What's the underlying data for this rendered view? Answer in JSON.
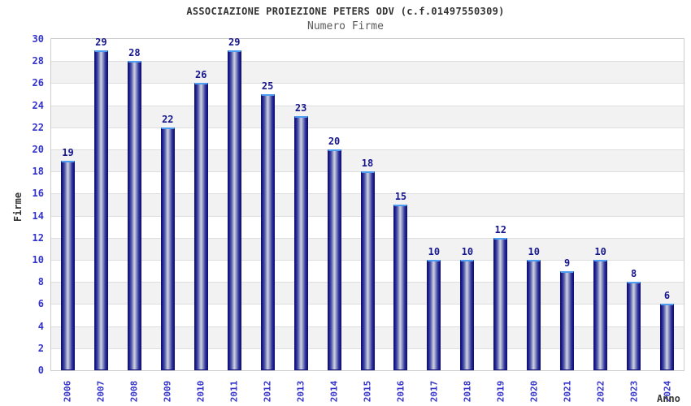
{
  "chart_data": {
    "type": "bar",
    "title": "ASSOCIAZIONE PROIEZIONE PETERS ODV (c.f.01497550309)",
    "subtitle": "Numero Firme",
    "xlabel": "Anno",
    "ylabel": "Firme",
    "categories": [
      "2006",
      "2007",
      "2008",
      "2009",
      "2010",
      "2011",
      "2012",
      "2013",
      "2014",
      "2015",
      "2016",
      "2017",
      "2018",
      "2019",
      "2020",
      "2021",
      "2022",
      "2023",
      "2024"
    ],
    "values": [
      19,
      29,
      28,
      22,
      26,
      29,
      25,
      23,
      20,
      18,
      15,
      10,
      10,
      12,
      10,
      9,
      10,
      8,
      6
    ],
    "ylim": [
      0,
      30
    ],
    "ytick_step": 2,
    "grid": true,
    "legend": "none",
    "band_pattern": "alternating horizontal bands every 2 units, white from 0-2 then light gray 2-4, repeating"
  },
  "colors": {
    "title": "#333333",
    "subtitle": "#5c5c5c",
    "axis_tick_blue": "#3333cc",
    "value_label_navy": "#16168c",
    "bar_edge": "#10107e",
    "bar_highlight": "#cdd0e3",
    "bar_top_cap": "#4d9df2",
    "band_gray": "#f2f2f2",
    "band_white": "#ffffff",
    "gridline": "#dedede",
    "plot_border": "#cccccc"
  }
}
